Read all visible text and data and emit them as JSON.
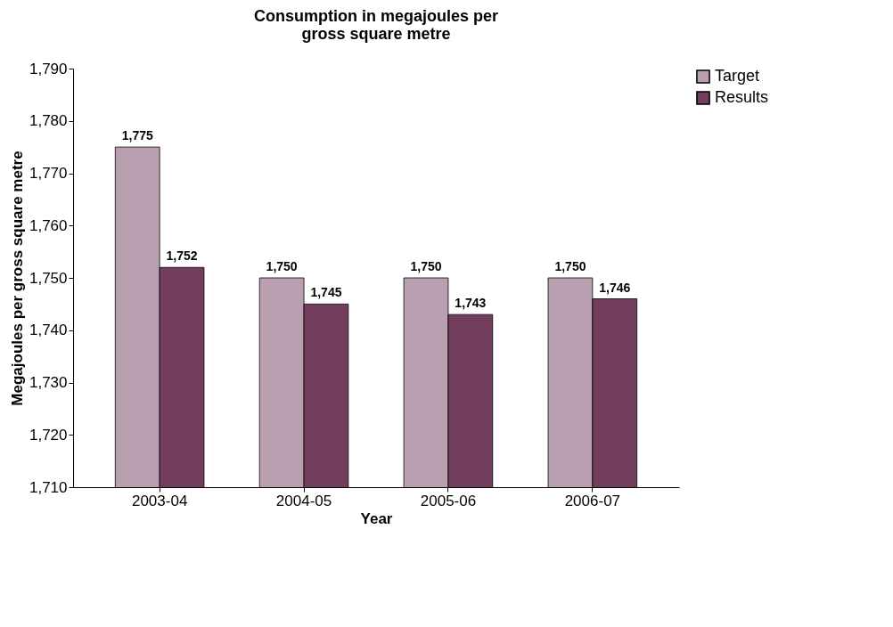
{
  "chart_data": {
    "type": "bar",
    "title": "Consumption in megajoules per gross square metre",
    "xlabel": "Year",
    "ylabel": "Megajoules per gross square metre",
    "categories": [
      "2003-04",
      "2004-05",
      "2005-06",
      "2006-07"
    ],
    "series": [
      {
        "name": "Target",
        "color": "#b9a0b0",
        "values": [
          1775,
          1750,
          1750,
          1750
        ],
        "value_labels": [
          "1,775",
          "1,750",
          "1,750",
          "1,750"
        ]
      },
      {
        "name": "Results",
        "color": "#723d5c",
        "values": [
          1752,
          1745,
          1743,
          1746
        ],
        "value_labels": [
          "1,752",
          "1,745",
          "1,743",
          "1,746"
        ]
      }
    ],
    "ylim": [
      1710,
      1790
    ],
    "yticks": [
      {
        "value": 1710,
        "label": "1,710"
      },
      {
        "value": 1720,
        "label": "1,720"
      },
      {
        "value": 1730,
        "label": "1,730"
      },
      {
        "value": 1740,
        "label": "1,740"
      },
      {
        "value": 1750,
        "label": "1,750"
      },
      {
        "value": 1760,
        "label": "1,760"
      },
      {
        "value": 1770,
        "label": "1,770"
      },
      {
        "value": 1780,
        "label": "1,780"
      },
      {
        "value": 1790,
        "label": "1,790"
      }
    ],
    "legend": "right",
    "grid": false
  }
}
